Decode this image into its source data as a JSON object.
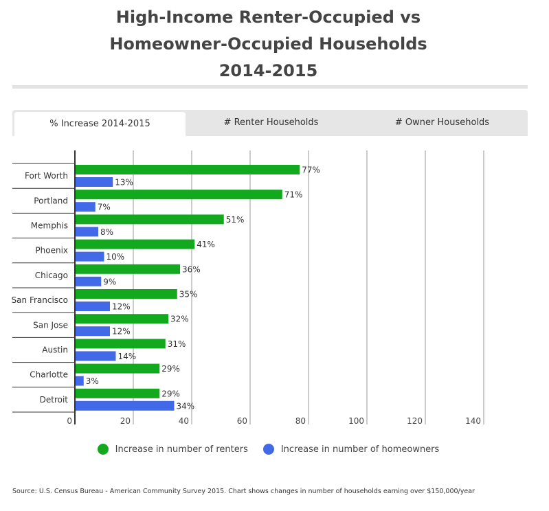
{
  "title_lines": [
    "High-Income Renter-Occupied vs",
    "Homeowner-Occupied Households",
    "2014-2015"
  ],
  "tabs": [
    {
      "label": "% Increase 2014-2015"
    },
    {
      "label": "# Renter Households"
    },
    {
      "label": "# Owner Households"
    }
  ],
  "source": "Source: U.S. Census Bureau - American Community Survey 2015. Chart shows changes in number of households earning over $150,000/year",
  "colors": {
    "renters": "#12a91f",
    "homeowners": "#4169e8"
  },
  "chart_data": {
    "type": "bar",
    "orientation": "horizontal",
    "categories": [
      "Fort Worth",
      "Portland",
      "Memphis",
      "Phoenix",
      "Chicago",
      "San Francisco",
      "San Jose",
      "Austin",
      "Charlotte",
      "Detroit"
    ],
    "series": [
      {
        "name": "Increase in number of renters",
        "values": [
          77,
          71,
          51,
          41,
          36,
          35,
          32,
          31,
          29,
          29
        ]
      },
      {
        "name": "Increase in number of homeowners",
        "values": [
          13,
          7,
          8,
          10,
          9,
          12,
          12,
          14,
          3,
          34
        ]
      }
    ],
    "value_suffix": "%",
    "xticks": [
      0,
      20,
      40,
      60,
      80,
      100,
      120,
      140
    ],
    "xlim": [
      0,
      155
    ],
    "grid": true,
    "legend_position": "bottom"
  }
}
